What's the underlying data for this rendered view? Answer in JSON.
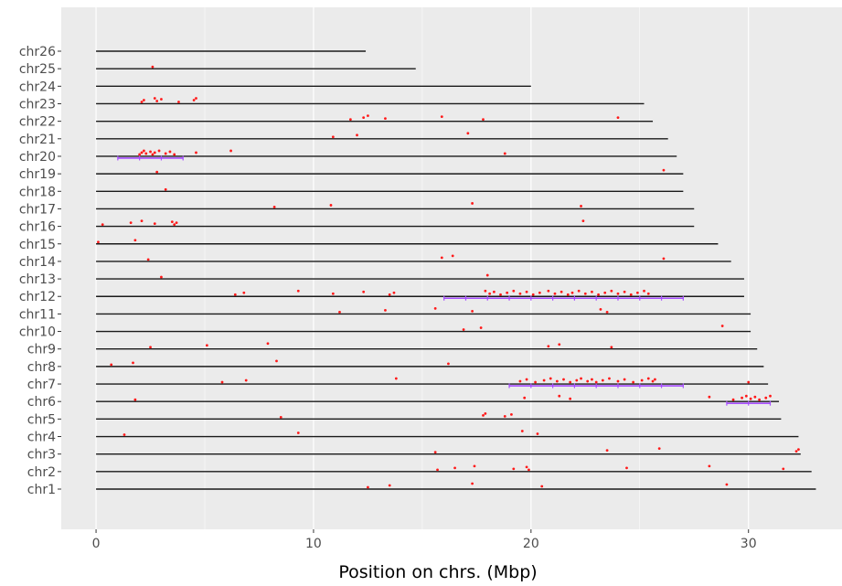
{
  "chart_data": {
    "type": "scatter",
    "title": "",
    "xlabel": "Position on chrs. (Mbp)",
    "ylabel": "",
    "xlim": [
      -1.6,
      34.3
    ],
    "x_ticks": [
      0,
      10,
      20,
      30
    ],
    "grid": true,
    "colors": {
      "panel": "#ebebeb",
      "gridline": "#ffffff",
      "chromosome": "#1a1a1a",
      "point": "#ff1a1a",
      "interval": "#a64dff",
      "tick_text": "#4d4d4d",
      "axis_title": "#000000"
    },
    "chromosomes": [
      {
        "name": "chr1",
        "length": 33.1
      },
      {
        "name": "chr2",
        "length": 32.9
      },
      {
        "name": "chr3",
        "length": 32.4
      },
      {
        "name": "chr4",
        "length": 32.3
      },
      {
        "name": "chr5",
        "length": 31.5
      },
      {
        "name": "chr6",
        "length": 31.4
      },
      {
        "name": "chr7",
        "length": 30.9
      },
      {
        "name": "chr8",
        "length": 30.7
      },
      {
        "name": "chr9",
        "length": 30.4
      },
      {
        "name": "chr10",
        "length": 30.1
      },
      {
        "name": "chr11",
        "length": 30.1
      },
      {
        "name": "chr12",
        "length": 29.8
      },
      {
        "name": "chr13",
        "length": 29.8
      },
      {
        "name": "chr14",
        "length": 29.2
      },
      {
        "name": "chr15",
        "length": 28.6
      },
      {
        "name": "chr16",
        "length": 27.5
      },
      {
        "name": "chr17",
        "length": 27.5
      },
      {
        "name": "chr18",
        "length": 27.0
      },
      {
        "name": "chr19",
        "length": 27.0
      },
      {
        "name": "chr20",
        "length": 26.7
      },
      {
        "name": "chr21",
        "length": 26.3
      },
      {
        "name": "chr22",
        "length": 25.6
      },
      {
        "name": "chr23",
        "length": 25.2
      },
      {
        "name": "chr24",
        "length": 20.0
      },
      {
        "name": "chr25",
        "length": 14.7
      },
      {
        "name": "chr26",
        "length": 12.4
      }
    ],
    "points": [
      {
        "chr": "chr1",
        "x": [
          12.5,
          13.5,
          17.3,
          20.5,
          29.0
        ]
      },
      {
        "chr": "chr2",
        "x": [
          15.7,
          16.5,
          17.4,
          19.2,
          19.8,
          19.9,
          24.4,
          28.2,
          31.6
        ]
      },
      {
        "chr": "chr3",
        "x": [
          15.6,
          23.5,
          25.9,
          32.2,
          32.3
        ]
      },
      {
        "chr": "chr4",
        "x": [
          1.3,
          9.3,
          19.6,
          20.3
        ]
      },
      {
        "chr": "chr5",
        "x": [
          8.5,
          17.8,
          17.9,
          18.8,
          19.1
        ]
      },
      {
        "chr": "chr6",
        "x": [
          1.8,
          19.7,
          21.3,
          21.8,
          28.2,
          29.3,
          29.7,
          29.9,
          30.1,
          30.3,
          30.5,
          30.8,
          31.0
        ]
      },
      {
        "chr": "chr7",
        "x": [
          5.8,
          6.9,
          13.8,
          19.5,
          19.8,
          20.2,
          20.6,
          20.9,
          21.2,
          21.5,
          21.8,
          22.1,
          22.3,
          22.6,
          22.8,
          23.0,
          23.3,
          23.6,
          24.0,
          24.3,
          24.7,
          25.1,
          25.4,
          25.6,
          25.7,
          30.0
        ]
      },
      {
        "chr": "chr8",
        "x": [
          0.7,
          1.7,
          8.3,
          16.2
        ]
      },
      {
        "chr": "chr9",
        "x": [
          2.5,
          5.1,
          7.9,
          20.8,
          21.3,
          23.7
        ]
      },
      {
        "chr": "chr10",
        "x": [
          16.9,
          17.7,
          28.8
        ]
      },
      {
        "chr": "chr11",
        "x": [
          11.2,
          13.3,
          15.6,
          17.3,
          23.2,
          23.5
        ]
      },
      {
        "chr": "chr12",
        "x": [
          6.4,
          6.8,
          9.3,
          10.9,
          12.3,
          13.5,
          13.7,
          17.9,
          18.1,
          18.3,
          18.6,
          18.9,
          19.2,
          19.5,
          19.8,
          20.1,
          20.4,
          20.8,
          21.1,
          21.4,
          21.7,
          21.9,
          22.2,
          22.5,
          22.8,
          23.1,
          23.4,
          23.7,
          24.0,
          24.3,
          24.6,
          24.9,
          25.2,
          25.4
        ]
      },
      {
        "chr": "chr13",
        "x": [
          3.0,
          18.0
        ]
      },
      {
        "chr": "chr14",
        "x": [
          2.4,
          15.9,
          16.4,
          26.1
        ]
      },
      {
        "chr": "chr15",
        "x": [
          0.1,
          1.8
        ]
      },
      {
        "chr": "chr16",
        "x": [
          0.3,
          1.6,
          2.1,
          2.7,
          3.5,
          3.6,
          3.7,
          22.4
        ]
      },
      {
        "chr": "chr17",
        "x": [
          8.2,
          10.8,
          17.3,
          22.3
        ]
      },
      {
        "chr": "chr18",
        "x": [
          3.2
        ]
      },
      {
        "chr": "chr19",
        "x": [
          2.8,
          26.1
        ]
      },
      {
        "chr": "chr20",
        "x": [
          2.0,
          2.1,
          2.2,
          2.3,
          2.5,
          2.6,
          2.7,
          2.9,
          3.2,
          3.4,
          3.6,
          4.6,
          6.2,
          18.8
        ]
      },
      {
        "chr": "chr21",
        "x": [
          10.9,
          12.0,
          17.1
        ]
      },
      {
        "chr": "chr22",
        "x": [
          11.7,
          12.3,
          12.5,
          13.3,
          15.9,
          17.8,
          24.0
        ]
      },
      {
        "chr": "chr23",
        "x": [
          2.1,
          2.2,
          2.7,
          2.8,
          3.0,
          3.8,
          4.5,
          4.6
        ]
      },
      {
        "chr": "chr25",
        "x": [
          2.6
        ]
      }
    ],
    "intervals": [
      {
        "chr": "chr20",
        "start": 1.0,
        "end": 4.0
      },
      {
        "chr": "chr12",
        "start": 16.0,
        "end": 27.0
      },
      {
        "chr": "chr7",
        "start": 19.0,
        "end": 27.0
      },
      {
        "chr": "chr6",
        "start": 29.0,
        "end": 31.0
      }
    ]
  }
}
